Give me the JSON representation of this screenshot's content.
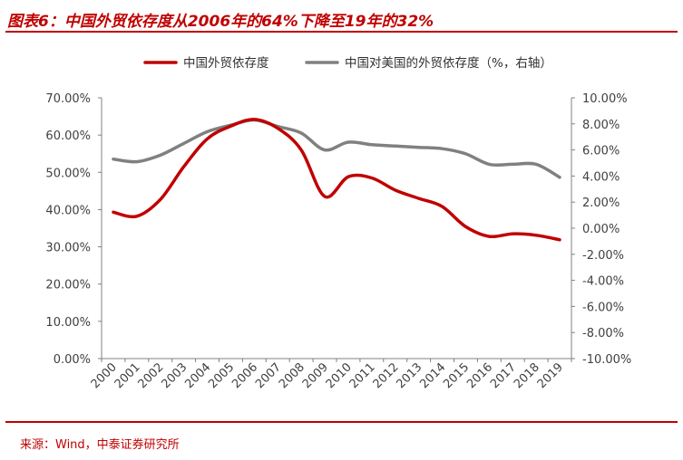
{
  "title": "图表6：中国外贸依存度从2006年的64%下降至19年的32%",
  "source": "来源：Wind，中泰证券研究所",
  "chart_data": {
    "type": "line",
    "categories": [
      "2000",
      "2001",
      "2002",
      "2003",
      "2004",
      "2005",
      "2006",
      "2007",
      "2008",
      "2009",
      "2010",
      "2011",
      "2012",
      "2013",
      "2014",
      "2015",
      "2016",
      "2017",
      "2018",
      "2019"
    ],
    "series": [
      {
        "name": "中国外贸依存度",
        "axis": "left",
        "color": "#c00000",
        "values": [
          39.3,
          38.2,
          42.7,
          51.5,
          59.0,
          62.4,
          64.2,
          61.8,
          56.0,
          43.5,
          48.8,
          48.5,
          45.2,
          43.0,
          40.8,
          35.4,
          32.8,
          33.5,
          33.1,
          31.9
        ]
      },
      {
        "name": "中国对美国的外贸依存度（%，右轴）",
        "axis": "right",
        "color": "#808080",
        "values": [
          5.3,
          5.1,
          5.6,
          6.5,
          7.4,
          7.9,
          8.3,
          7.8,
          7.3,
          6.0,
          6.6,
          6.4,
          6.3,
          6.2,
          6.1,
          5.7,
          4.9,
          4.9,
          4.9,
          3.9
        ]
      }
    ],
    "y_left": {
      "ylim": [
        0,
        70
      ],
      "ticks": [
        0,
        10,
        20,
        30,
        40,
        50,
        60,
        70
      ],
      "tick_labels": [
        "0.00%",
        "10.00%",
        "20.00%",
        "30.00%",
        "40.00%",
        "50.00%",
        "60.00%",
        "70.00%"
      ]
    },
    "y_right": {
      "ylim": [
        -10,
        10
      ],
      "ticks": [
        -10,
        -8,
        -6,
        -4,
        -2,
        0,
        2,
        4,
        6,
        8,
        10
      ],
      "tick_labels": [
        "-10.00%",
        "-8.00%",
        "-6.00%",
        "-4.00%",
        "-2.00%",
        "0.00%",
        "2.00%",
        "4.00%",
        "6.00%",
        "8.00%",
        "10.00%"
      ]
    },
    "legend_position": "top",
    "grid": false
  }
}
